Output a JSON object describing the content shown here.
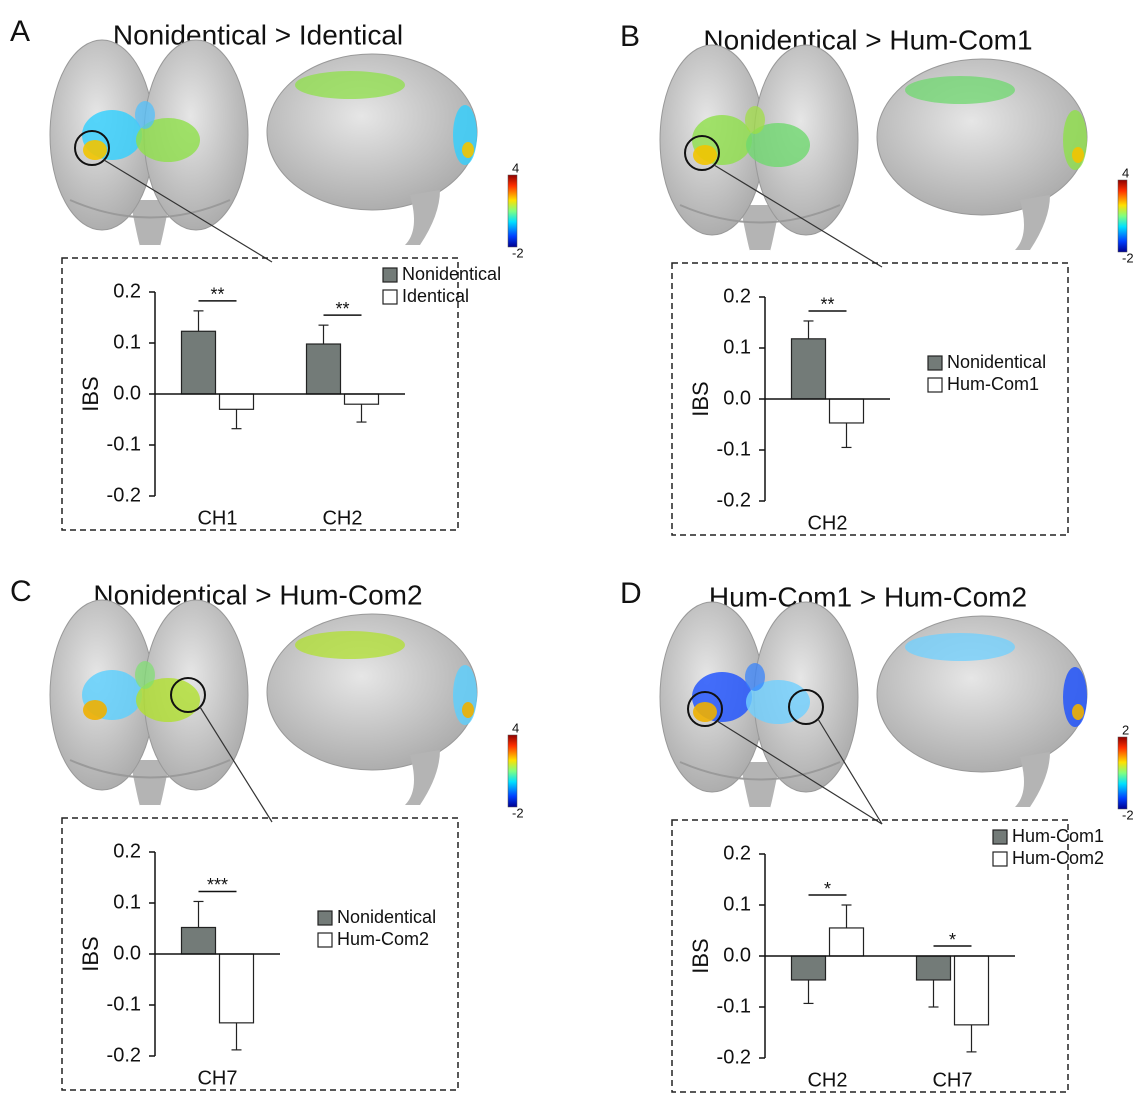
{
  "chart_data": [
    {
      "type": "bar",
      "panel": "A",
      "title": "Nonidentical > Identical",
      "ylabel": "IBS",
      "categories": [
        "CH1",
        "CH2"
      ],
      "series": [
        {
          "name": "Nonidentical",
          "color": "#737b78",
          "values": [
            0.123,
            0.098
          ],
          "errors": [
            0.04,
            0.037
          ]
        },
        {
          "name": "Identical",
          "color": "#ffffff",
          "values": [
            -0.03,
            -0.02
          ],
          "errors": [
            0.038,
            0.035
          ]
        }
      ],
      "significance": [
        "**",
        "**"
      ],
      "ylim": [
        -0.2,
        0.2
      ],
      "yticks": [
        -0.2,
        -0.1,
        {
          "value": 0,
          "label": "0.0"
        },
        0.1,
        0.2
      ],
      "legend": "upper right",
      "colorbar_ticks": [
        -2,
        4
      ]
    },
    {
      "type": "bar",
      "panel": "B",
      "title": "Nonidentical > Hum-Com1",
      "ylabel": "IBS",
      "categories": [
        "CH2"
      ],
      "series": [
        {
          "name": "Nonidentical",
          "color": "#737b78",
          "values": [
            0.118
          ],
          "errors": [
            0.035
          ]
        },
        {
          "name": "Hum-Com1",
          "color": "#ffffff",
          "values": [
            -0.047
          ],
          "errors": [
            0.048
          ]
        }
      ],
      "significance": [
        "**"
      ],
      "ylim": [
        -0.2,
        0.2
      ],
      "yticks": [
        -0.2,
        -0.1,
        {
          "value": 0,
          "label": "0.0"
        },
        0.1,
        0.2
      ],
      "legend": "right",
      "colorbar_ticks": [
        -2,
        4
      ]
    },
    {
      "type": "bar",
      "panel": "C",
      "title": "Nonidentical > Hum-Com2",
      "ylabel": "IBS",
      "categories": [
        "CH7"
      ],
      "series": [
        {
          "name": "Nonidentical",
          "color": "#737b78",
          "values": [
            0.052
          ],
          "errors": [
            0.051
          ]
        },
        {
          "name": "Hum-Com2",
          "color": "#ffffff",
          "values": [
            -0.135
          ],
          "errors": [
            0.053
          ]
        }
      ],
      "significance": [
        "***"
      ],
      "ylim": [
        -0.2,
        0.2
      ],
      "yticks": [
        -0.2,
        -0.1,
        {
          "value": 0,
          "label": "0.0"
        },
        0.1,
        0.2
      ],
      "legend": "right",
      "colorbar_ticks": [
        -2,
        4
      ]
    },
    {
      "type": "bar",
      "panel": "D",
      "title": "Hum-Com1 > Hum-Com2",
      "ylabel": "IBS",
      "categories": [
        "CH2",
        "CH7"
      ],
      "series": [
        {
          "name": "Hum-Com1",
          "color": "#737b78",
          "values": [
            -0.047,
            -0.047
          ],
          "errors": [
            0.046,
            0.053
          ]
        },
        {
          "name": "Hum-Com2",
          "color": "#ffffff",
          "values": [
            0.055,
            -0.135
          ],
          "errors": [
            0.045,
            0.053
          ]
        }
      ],
      "significance": [
        "*",
        "*"
      ],
      "ylim": [
        -0.2,
        0.2
      ],
      "yticks": [
        -0.2,
        -0.1,
        {
          "value": 0,
          "label": "0.0"
        },
        0.1,
        0.2
      ],
      "legend": "upper right",
      "colorbar_ticks": [
        -2,
        2
      ]
    }
  ]
}
